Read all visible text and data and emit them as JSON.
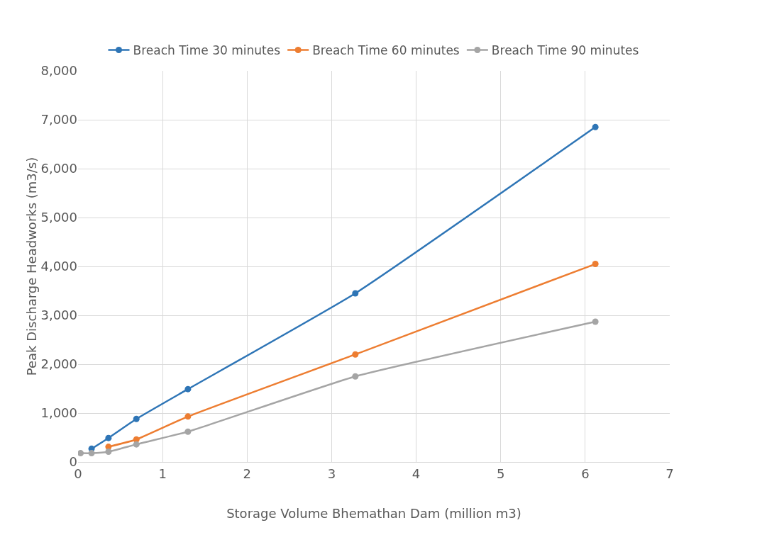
{
  "chart_data": {
    "type": "line",
    "xlabel": "Storage Volume Bhemathan Dam (million m3)",
    "ylabel": "Peak Discharge Headworks (m3/s)",
    "x": [
      0.03,
      0.16,
      0.36,
      0.69,
      1.3,
      3.28,
      6.12
    ],
    "series": [
      {
        "name": "Breach Time 30 minutes",
        "color": "#2e75b6",
        "values": [
          null,
          270,
          490,
          880,
          1490,
          3450,
          6850
        ]
      },
      {
        "name": "Breach Time 60 minutes",
        "color": "#ed7d31",
        "values": [
          null,
          null,
          310,
          460,
          930,
          2200,
          4050
        ]
      },
      {
        "name": "Breach Time 90 minutes",
        "color": "#a5a5a5",
        "values": [
          180,
          180,
          210,
          360,
          620,
          1750,
          2870
        ]
      }
    ],
    "xlim": [
      0,
      7
    ],
    "xticks": [
      0,
      1,
      2,
      3,
      4,
      5,
      6,
      7
    ],
    "ylim": [
      0,
      8000
    ],
    "yticks": [
      {
        "value": 0,
        "label": "0"
      },
      {
        "value": 1000,
        "label": "1,000"
      },
      {
        "value": 2000,
        "label": "2,000"
      },
      {
        "value": 3000,
        "label": "3,000"
      },
      {
        "value": 4000,
        "label": "4,000"
      },
      {
        "value": 5000,
        "label": "5,000"
      },
      {
        "value": 6000,
        "label": "6,000"
      },
      {
        "value": 7000,
        "label": "7,000"
      },
      {
        "value": 8000,
        "label": "8,000"
      }
    ],
    "grid": true,
    "legend": "top",
    "marker": "circle",
    "line_style": "solid"
  }
}
